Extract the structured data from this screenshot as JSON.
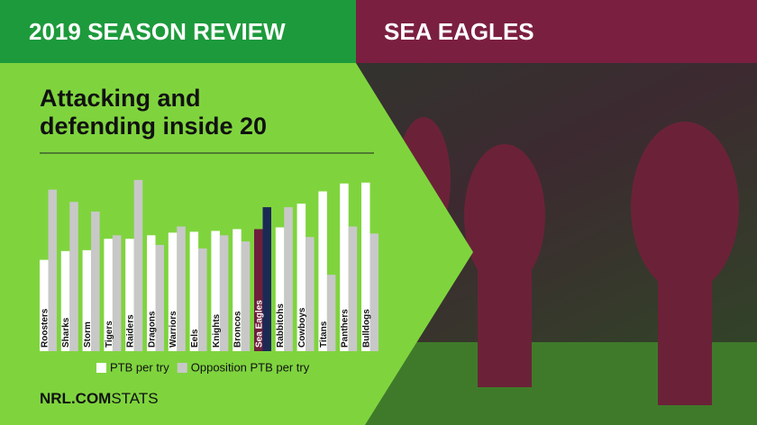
{
  "chart_data": {
    "type": "bar",
    "header_left": "2019 SEASON REVIEW",
    "header_right": "SEA EAGLES",
    "title": "Attacking and defending inside 20",
    "brand": "NRL.COM",
    "brand_suffix": "STATS",
    "categories": [
      "Roosters",
      "Sharks",
      "Storm",
      "Tigers",
      "Raiders",
      "Dragons",
      "Warriors",
      "Eels",
      "Knights",
      "Broncos",
      "Sea Eagles",
      "Rabbitohs",
      "Cowboys",
      "Titans",
      "Panthers",
      "Bulldogs"
    ],
    "series": [
      {
        "name": "PTB per try",
        "color": "#ffffff",
        "highlight_color": "#6e1f3c",
        "values": [
          104,
          114,
          115,
          128,
          128,
          132,
          135,
          136,
          137,
          139,
          139,
          141,
          168,
          182,
          191,
          192
        ]
      },
      {
        "name": "Opposition PTB per try",
        "color": "#c8c8c8",
        "highlight_color": "#1a2a55",
        "values": [
          184,
          170,
          159,
          132,
          195,
          121,
          142,
          117,
          132,
          125,
          164,
          164,
          130,
          87,
          142,
          134
        ]
      }
    ],
    "highlight_index": 10,
    "ylim": [
      0,
      200
    ]
  }
}
